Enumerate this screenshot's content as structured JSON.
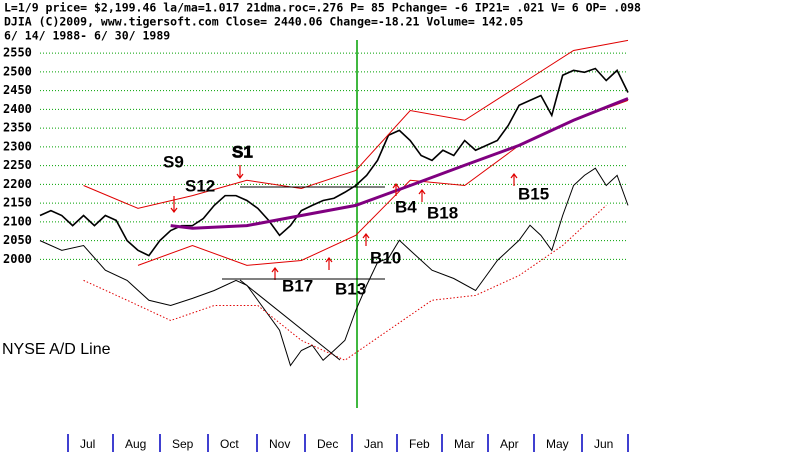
{
  "chart_data": {
    "type": "line",
    "header": [
      "L=1/9  price= $2,199.46  la/ma=1.017  21dma.roc=.276  P=  85  Pchange= -6  IP21= .021  V= 6  OP= .098",
      "DJIA    (C)2009, www.tigersoft.com     Close=  2440.06   Change=-18.21  Volume=  142.05",
      "6/ 14/ 1988- 6/ 30/ 1989"
    ],
    "categories": [
      "Jul",
      "Aug",
      "Sep",
      "Oct",
      "Nov",
      "Dec",
      "Jan",
      "Feb",
      "Mar",
      "Apr",
      "May",
      "Jun"
    ],
    "xlim": [
      0,
      54
    ],
    "ylim": [
      1545,
      2585
    ],
    "yticks": [
      2000,
      2050,
      2100,
      2150,
      2200,
      2250,
      2300,
      2350,
      2400,
      2450,
      2500,
      2550
    ],
    "grid": true,
    "series": [
      {
        "color": "#000000",
        "x": [
          0,
          1,
          2,
          3,
          4,
          5,
          6,
          7,
          8,
          9,
          10,
          11,
          12,
          13,
          14,
          15,
          16,
          17,
          18,
          19,
          20,
          21,
          22,
          23,
          24,
          25,
          26,
          27,
          28,
          29,
          30,
          31,
          32,
          33,
          34,
          35,
          36,
          37,
          38,
          39,
          40,
          41,
          42,
          43,
          44,
          45,
          46,
          47,
          48,
          49,
          50,
          51,
          52,
          53,
          54
        ],
        "values": [
          2117,
          2130,
          2117,
          2090,
          2117,
          2090,
          2117,
          2104,
          2050,
          2024,
          2010,
          2050,
          2077,
          2090,
          2090,
          2109,
          2144,
          2170,
          2170,
          2157,
          2136,
          2104,
          2064,
          2090,
          2130,
          2144,
          2157,
          2163,
          2179,
          2197,
          2224,
          2264,
          2331,
          2344,
          2317,
          2277,
          2264,
          2291,
          2277,
          2317,
          2291,
          2304,
          2317,
          2357,
          2411,
          2424,
          2437,
          2384,
          2491,
          2504,
          2499,
          2509,
          2477,
          2504,
          2445
        ]
      },
      {
        "color": "#e00000",
        "x": [
          4,
          9,
          14,
          19,
          24,
          29,
          34,
          39,
          44,
          49,
          54
        ],
        "values": [
          2197,
          2136,
          2170,
          2211,
          2189,
          2237,
          2397,
          2371,
          2464,
          2557,
          2584
        ]
      },
      {
        "color": "#e00000",
        "x": [
          9,
          14,
          19,
          24,
          29,
          34,
          39,
          44,
          49,
          54
        ],
        "values": [
          1984,
          2037,
          1984,
          1997,
          2064,
          2211,
          2197,
          2304,
          2371,
          2424
        ]
      },
      {
        "color": "#800080",
        "x": [
          12,
          14,
          19,
          24,
          29,
          34,
          39,
          44,
          49,
          54
        ],
        "values": [
          2090,
          2083,
          2090,
          2117,
          2144,
          2197,
          2251,
          2304,
          2371,
          2429
        ]
      },
      {
        "color": "#000000",
        "x": [
          0,
          2,
          4,
          6,
          8,
          10,
          12,
          14,
          16,
          18,
          19,
          20,
          22,
          23,
          24,
          25,
          26,
          27,
          28,
          29,
          30,
          31,
          32,
          33,
          34,
          36,
          38,
          40,
          41,
          42,
          44,
          45,
          46,
          47,
          48,
          49,
          50,
          51,
          52,
          53,
          54
        ],
        "values": [
          2050,
          2024,
          2037,
          1971,
          1944,
          1891,
          1877,
          1896,
          1917,
          1944,
          1931,
          1891,
          1811,
          1717,
          1757,
          1771,
          1731,
          1757,
          1784,
          1864,
          1931,
          1992,
          2003,
          2051,
          2024,
          1971,
          1949,
          1917,
          1957,
          1997,
          2051,
          2091,
          2064,
          2024,
          2117,
          2197,
          2224,
          2243,
          2197,
          2224,
          2144
        ]
      },
      {
        "color": "#e00000",
        "dashed": true,
        "x": [
          4,
          8,
          12,
          16,
          20,
          24,
          28,
          32,
          36,
          40,
          44,
          48,
          52
        ],
        "values": [
          1944,
          1891,
          1837,
          1877,
          1877,
          1784,
          1731,
          1811,
          1891,
          1904,
          1957,
          2037,
          2144
        ]
      }
    ],
    "annotations": [
      "S9",
      "S12",
      "S1",
      "B17",
      "B13",
      "B10",
      "B4",
      "B18",
      "B15",
      "NYSE A/D Line"
    ]
  }
}
